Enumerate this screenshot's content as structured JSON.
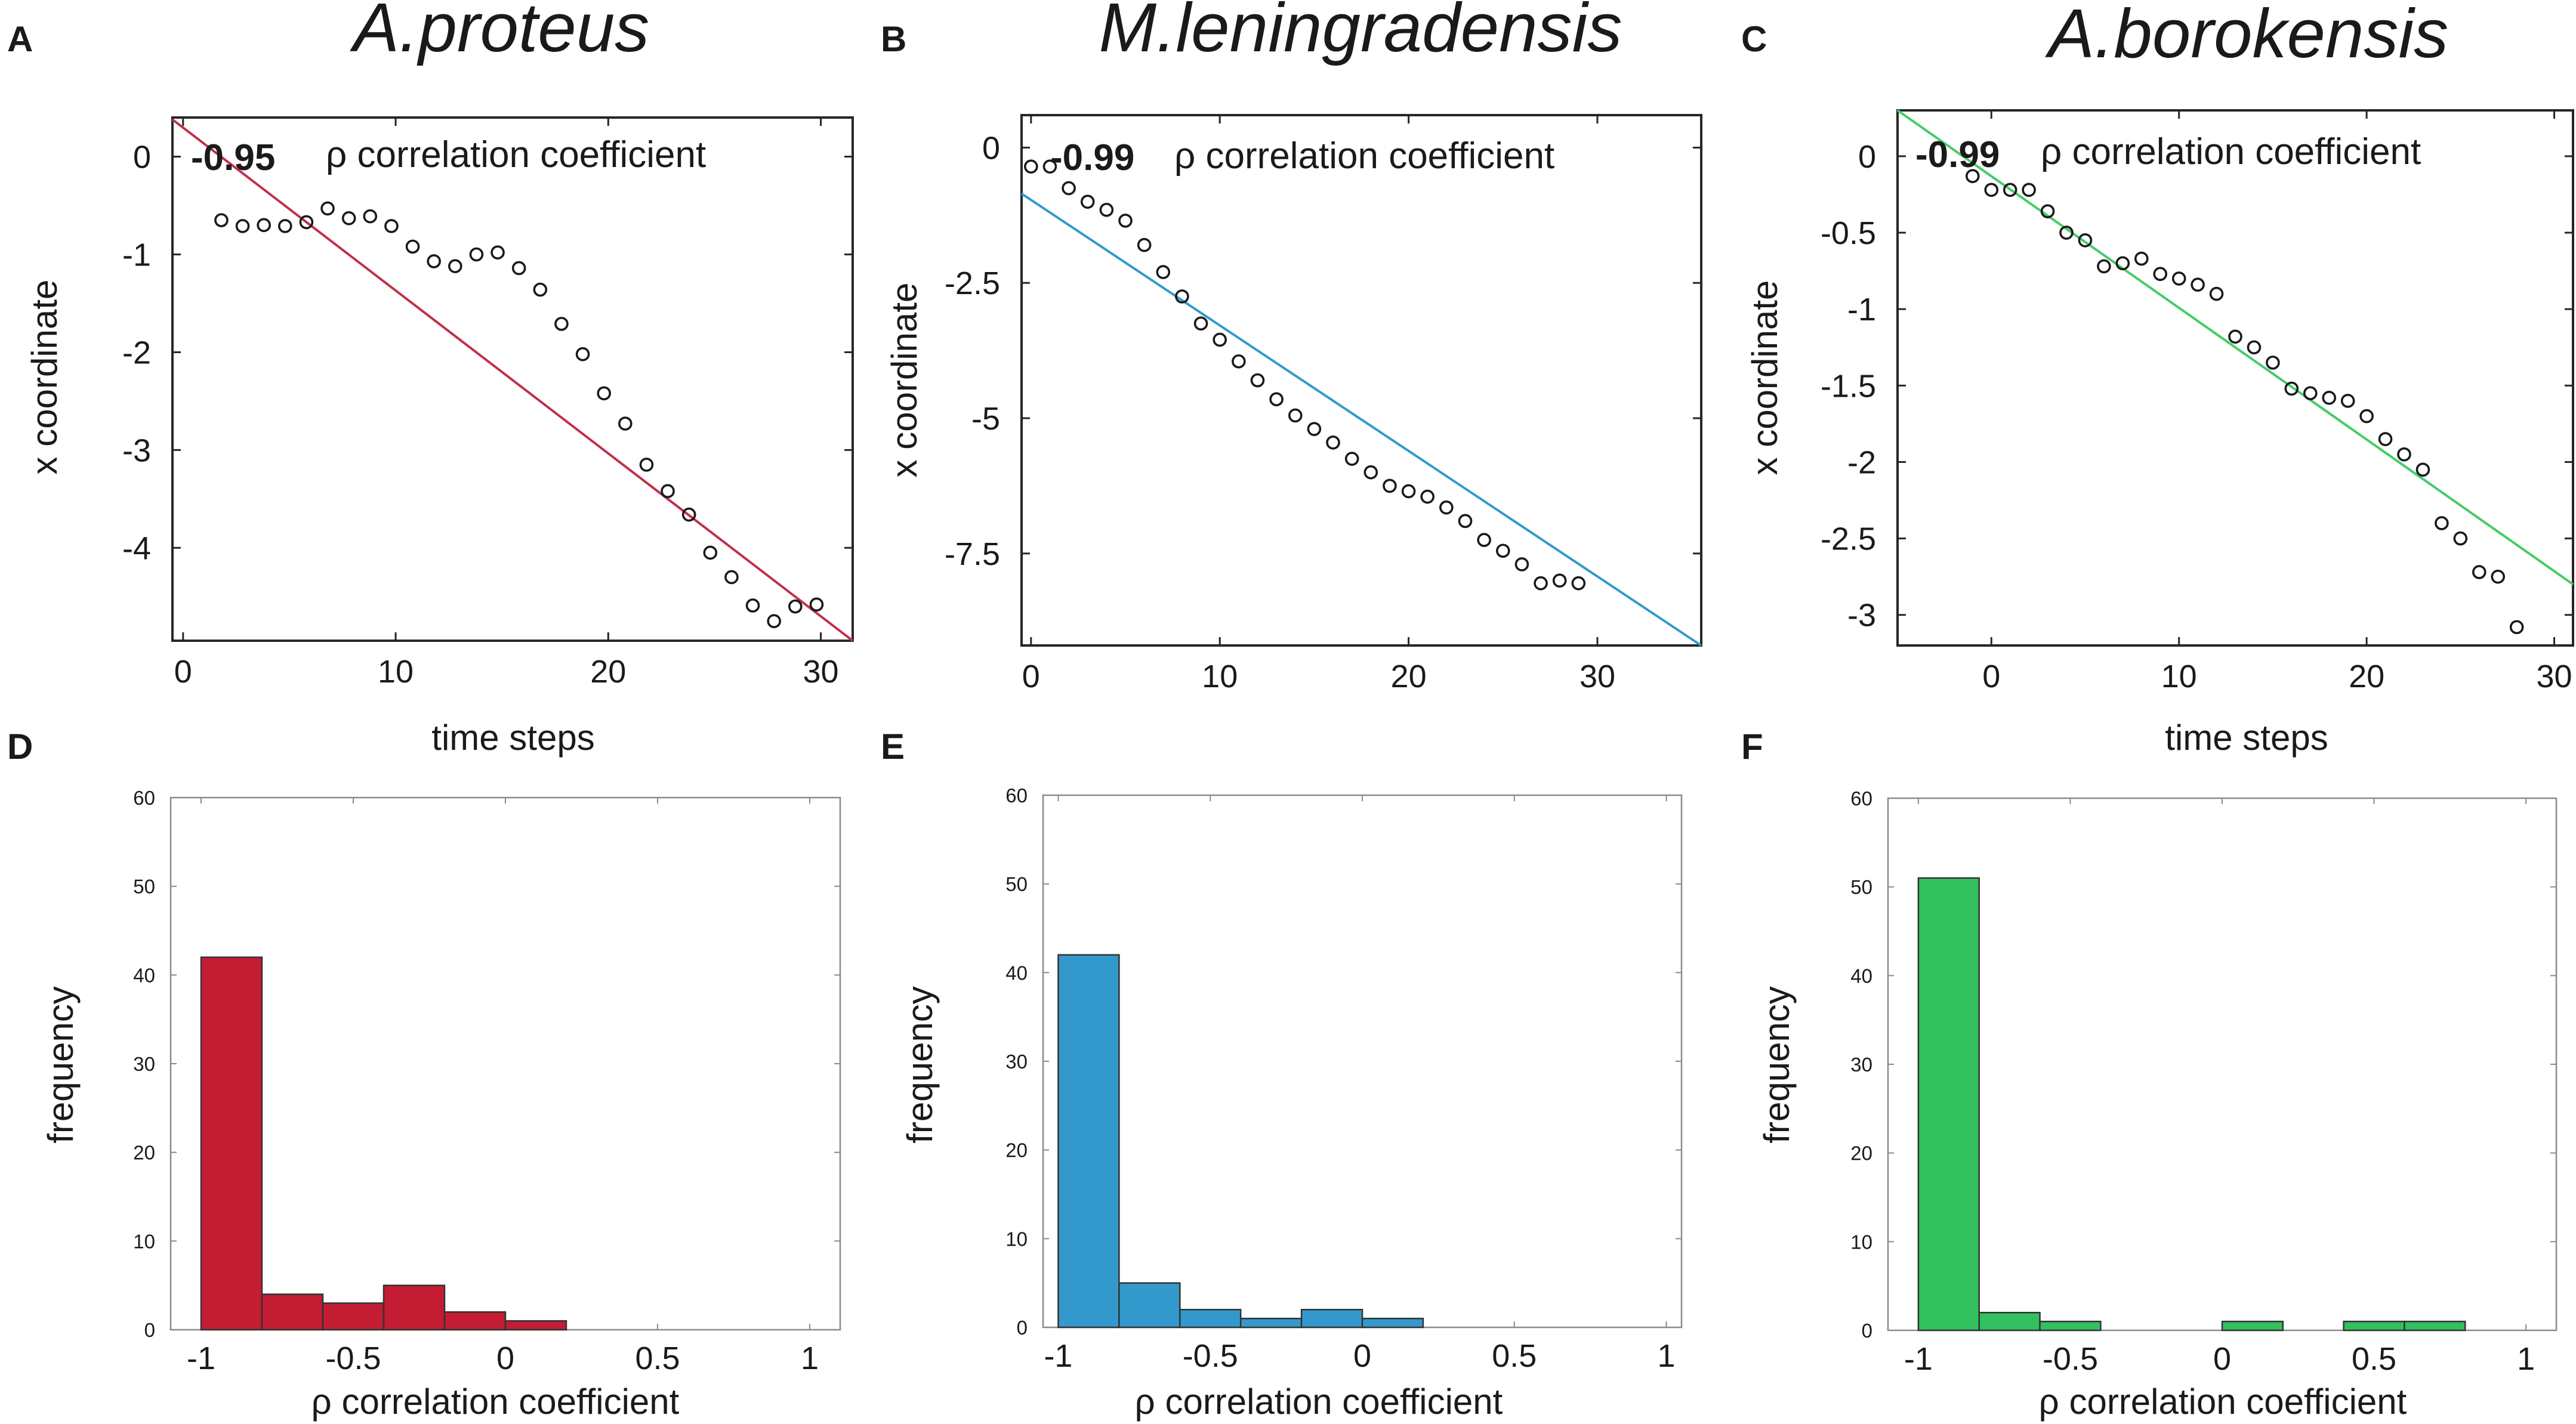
{
  "figure": {
    "panels": [
      {
        "letter": "A",
        "species": "A.proteus"
      },
      {
        "letter": "B",
        "species": "M.leningradensis"
      },
      {
        "letter": "C",
        "species": "A.borokensis"
      },
      {
        "letter": "D"
      },
      {
        "letter": "E"
      },
      {
        "letter": "F"
      }
    ]
  },
  "chart_data": [
    {
      "panel": "A",
      "type": "scatter",
      "title": "A.proteus",
      "xlabel": "time steps",
      "ylabel": "x coordinate",
      "xlim": [
        -0.5,
        31.5
      ],
      "ylim": [
        -4.95,
        0.4
      ],
      "xticks": [
        0,
        10,
        20,
        30
      ],
      "yticks": [
        0,
        -1,
        -2,
        -3,
        -4
      ],
      "annotation": {
        "value": "-0.95",
        "text": "ρ correlation coefficient"
      },
      "fit_line": {
        "color": "#c0304a",
        "x": [
          -0.5,
          31.5
        ],
        "y": [
          0.38,
          -4.95
        ]
      },
      "points": [
        [
          1.8,
          -0.65
        ],
        [
          2.8,
          -0.71
        ],
        [
          3.8,
          -0.7
        ],
        [
          4.8,
          -0.71
        ],
        [
          5.8,
          -0.67
        ],
        [
          6.8,
          -0.53
        ],
        [
          7.8,
          -0.63
        ],
        [
          8.8,
          -0.61
        ],
        [
          9.8,
          -0.71
        ],
        [
          10.8,
          -0.92
        ],
        [
          11.8,
          -1.07
        ],
        [
          12.8,
          -1.12
        ],
        [
          13.8,
          -1.0
        ],
        [
          14.8,
          -0.98
        ],
        [
          15.8,
          -1.14
        ],
        [
          16.8,
          -1.36
        ],
        [
          17.8,
          -1.71
        ],
        [
          18.8,
          -2.02
        ],
        [
          19.8,
          -2.42
        ],
        [
          20.8,
          -2.73
        ],
        [
          21.8,
          -3.15
        ],
        [
          22.8,
          -3.42
        ],
        [
          23.8,
          -3.66
        ],
        [
          24.8,
          -4.05
        ],
        [
          25.8,
          -4.3
        ],
        [
          26.8,
          -4.59
        ],
        [
          27.8,
          -4.75
        ],
        [
          28.8,
          -4.6
        ],
        [
          29.8,
          -4.58
        ]
      ]
    },
    {
      "panel": "B",
      "type": "scatter",
      "title": "M.leningradensis",
      "xlabel": "",
      "ylabel": "x coordinate",
      "xlim": [
        -0.5,
        35.5
      ],
      "ylim": [
        -9.2,
        0.6
      ],
      "xticks": [
        0,
        10,
        20,
        30
      ],
      "yticks": [
        0,
        -2.5,
        -5,
        -7.5
      ],
      "annotation": {
        "value": "-0.99",
        "text": "ρ correlation coefficient"
      },
      "fit_line": {
        "color": "#3399cc",
        "x": [
          -0.5,
          35.5
        ],
        "y": [
          -0.85,
          -9.2
        ]
      },
      "points": [
        [
          0,
          -0.35
        ],
        [
          1,
          -0.35
        ],
        [
          2,
          -0.75
        ],
        [
          3,
          -1.0
        ],
        [
          4,
          -1.15
        ],
        [
          5,
          -1.35
        ],
        [
          6,
          -1.8
        ],
        [
          7,
          -2.3
        ],
        [
          8,
          -2.75
        ],
        [
          9,
          -3.25
        ],
        [
          10,
          -3.55
        ],
        [
          11,
          -3.95
        ],
        [
          12,
          -4.3
        ],
        [
          13,
          -4.65
        ],
        [
          14,
          -4.95
        ],
        [
          15,
          -5.2
        ],
        [
          16,
          -5.45
        ],
        [
          17,
          -5.75
        ],
        [
          18,
          -6.0
        ],
        [
          19,
          -6.25
        ],
        [
          20,
          -6.35
        ],
        [
          21,
          -6.45
        ],
        [
          22,
          -6.65
        ],
        [
          23,
          -6.9
        ],
        [
          24,
          -7.25
        ],
        [
          25,
          -7.45
        ],
        [
          26,
          -7.7
        ],
        [
          27,
          -8.05
        ],
        [
          28,
          -8.0
        ],
        [
          29,
          -8.05
        ]
      ]
    },
    {
      "panel": "C",
      "type": "scatter",
      "title": "A.borokensis",
      "xlabel": "time steps",
      "ylabel": "x coordinate",
      "xlim": [
        -5,
        31
      ],
      "ylim": [
        -3.2,
        0.3
      ],
      "xticks": [
        0,
        10,
        20,
        30
      ],
      "yticks": [
        0,
        -0.5,
        -1,
        -1.5,
        -2,
        -2.5,
        -3
      ],
      "annotation": {
        "value": "-0.99",
        "text": "ρ correlation coefficient"
      },
      "fit_line": {
        "color": "#44cc66",
        "x": [
          -5,
          31
        ],
        "y": [
          0.3,
          -2.8
        ]
      },
      "points": [
        [
          -1,
          -0.13
        ],
        [
          0,
          -0.22
        ],
        [
          1,
          -0.22
        ],
        [
          2,
          -0.22
        ],
        [
          3,
          -0.36
        ],
        [
          4,
          -0.5
        ],
        [
          5,
          -0.55
        ],
        [
          6,
          -0.72
        ],
        [
          7,
          -0.7
        ],
        [
          8,
          -0.67
        ],
        [
          9,
          -0.77
        ],
        [
          10,
          -0.8
        ],
        [
          11,
          -0.84
        ],
        [
          12,
          -0.9
        ],
        [
          13,
          -1.18
        ],
        [
          14,
          -1.25
        ],
        [
          15,
          -1.35
        ],
        [
          16,
          -1.52
        ],
        [
          17,
          -1.55
        ],
        [
          18,
          -1.58
        ],
        [
          19,
          -1.6
        ],
        [
          20,
          -1.7
        ],
        [
          21,
          -1.85
        ],
        [
          22,
          -1.95
        ],
        [
          23,
          -2.05
        ],
        [
          24,
          -2.4
        ],
        [
          25,
          -2.5
        ],
        [
          26,
          -2.72
        ],
        [
          27,
          -2.75
        ],
        [
          28,
          -3.08
        ]
      ]
    },
    {
      "panel": "D",
      "type": "bar",
      "xlabel": "ρ correlation coefficient",
      "ylabel": "frequency",
      "xlim": [
        -1.1,
        1.1
      ],
      "ylim": [
        0,
        60
      ],
      "xticks": [
        -1,
        -0.5,
        0,
        0.5,
        1
      ],
      "xtick_labels": [
        "-1",
        "-0.5",
        "0",
        "0.5",
        "1"
      ],
      "yticks": [
        0,
        10,
        20,
        30,
        40,
        50,
        60
      ],
      "color": "#c41c33",
      "bin_width": 0.2,
      "bins": [
        [
          -1.0,
          42
        ],
        [
          -0.8,
          4
        ],
        [
          -0.6,
          3
        ],
        [
          -0.4,
          5
        ],
        [
          -0.2,
          2
        ],
        [
          0.0,
          1
        ]
      ]
    },
    {
      "panel": "E",
      "type": "bar",
      "xlabel": "ρ correlation coefficient",
      "ylabel": "frequency",
      "xlim": [
        -1.05,
        1.05
      ],
      "ylim": [
        0,
        60
      ],
      "xticks": [
        -1,
        -0.5,
        0,
        0.5,
        1
      ],
      "xtick_labels": [
        "-1",
        "-0.5",
        "0",
        "0.5",
        "1"
      ],
      "yticks": [
        0,
        10,
        20,
        30,
        40,
        50,
        60
      ],
      "color": "#3399cc",
      "bin_width": 0.2,
      "bins": [
        [
          -1.0,
          42
        ],
        [
          -0.8,
          5
        ],
        [
          -0.6,
          2
        ],
        [
          -0.4,
          1
        ],
        [
          -0.2,
          2
        ],
        [
          0.0,
          1
        ]
      ]
    },
    {
      "panel": "F",
      "type": "bar",
      "xlabel": "ρ correlation coefficient",
      "ylabel": "frequency",
      "xlim": [
        -1.1,
        1.1
      ],
      "ylim": [
        0,
        60
      ],
      "xticks": [
        -1,
        -0.5,
        0,
        0.5,
        1
      ],
      "xtick_labels": [
        "-1",
        "-0.5",
        "0",
        "0.5",
        "1"
      ],
      "yticks": [
        0,
        10,
        20,
        30,
        40,
        50,
        60
      ],
      "color": "#33c160",
      "bin_width": 0.2,
      "bins": [
        [
          -1.0,
          51
        ],
        [
          -0.8,
          2
        ],
        [
          -0.6,
          1
        ],
        [
          0.0,
          1
        ],
        [
          0.4,
          1
        ],
        [
          0.6,
          1
        ]
      ]
    }
  ]
}
